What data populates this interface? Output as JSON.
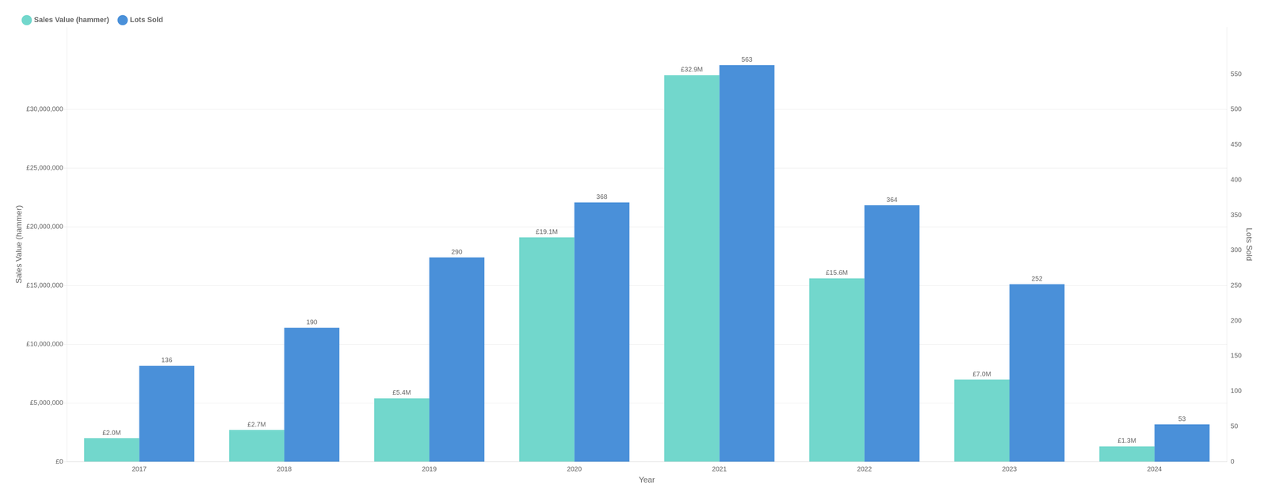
{
  "chart_data": {
    "type": "bar",
    "categories": [
      "2017",
      "2018",
      "2019",
      "2020",
      "2021",
      "2022",
      "2023",
      "2024"
    ],
    "series": [
      {
        "name": "Sales Value (hammer)",
        "color": "#72d7cc",
        "axis": "y",
        "values": [
          2000000,
          2700000,
          5400000,
          19100000,
          32900000,
          15600000,
          7000000,
          1300000
        ],
        "value_labels": [
          "£2.0M",
          "£2.7M",
          "£5.4M",
          "£19.1M",
          "£32.9M",
          "£15.6M",
          "£7.0M",
          "£1.3M"
        ]
      },
      {
        "name": "Lots Sold",
        "color": "#4a90d9",
        "axis": "y2",
        "values": [
          136,
          190,
          290,
          368,
          563,
          364,
          252,
          53
        ]
      }
    ],
    "xlabel": "Year",
    "ylabel": "Sales Value (hammer)",
    "y2label": "Lots Sold",
    "ylim": [
      0,
      37000000
    ],
    "yticks": [
      {
        "value": 0,
        "label": "£0"
      },
      {
        "value": 5000000,
        "label": "£5,000,000"
      },
      {
        "value": 10000000,
        "label": "£10,000,000"
      },
      {
        "value": 15000000,
        "label": "£15,000,000"
      },
      {
        "value": 20000000,
        "label": "£20,000,000"
      },
      {
        "value": 25000000,
        "label": "£25,000,000"
      },
      {
        "value": 30000000,
        "label": "£30,000,000"
      }
    ],
    "y2lim": [
      0,
      617
    ],
    "y2ticks": [
      0,
      50,
      100,
      150,
      200,
      250,
      300,
      350,
      400,
      450,
      500,
      550
    ],
    "grid": true,
    "legend": "upper left",
    "data_labels": true
  }
}
